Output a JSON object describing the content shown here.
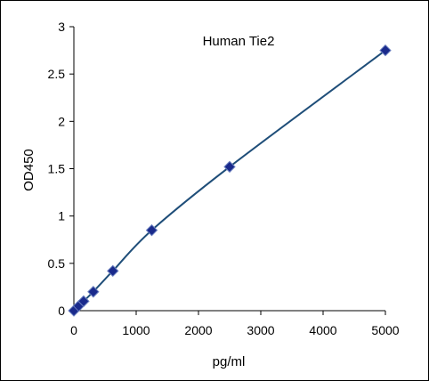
{
  "chart_data": {
    "type": "scatter",
    "annotation": "Human Tie2",
    "xlabel": "pg/ml",
    "ylabel": "OD450",
    "xlim": [
      0,
      5000
    ],
    "ylim": [
      0,
      3
    ],
    "x_ticks": [
      0,
      1000,
      2000,
      3000,
      4000,
      5000
    ],
    "y_ticks": [
      0,
      0.5,
      1,
      1.5,
      2,
      2.5,
      3
    ],
    "y_tick_labels": [
      "0",
      "0.5",
      "1",
      "1.5",
      "2",
      "2.5",
      "3"
    ],
    "grid": false,
    "legend": "none",
    "series": [
      {
        "x": [
          0,
          78,
          156,
          312,
          625,
          1250,
          2500,
          5000
        ],
        "y": [
          0,
          0.05,
          0.1,
          0.2,
          0.42,
          0.85,
          1.52,
          2.75
        ],
        "marker": "diamond",
        "color": "#1a2a8c",
        "fit_curve": true,
        "curve_color": "#1f4e79"
      }
    ]
  }
}
